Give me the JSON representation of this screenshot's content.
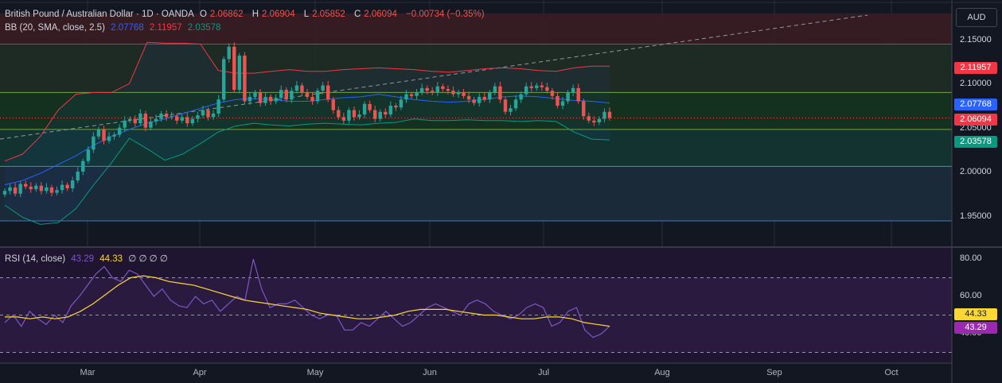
{
  "header": {
    "symbol": "British Pound / Australian Dollar · 1D · OANDA",
    "open_label": "O",
    "open": "2.06862",
    "high_label": "H",
    "high": "2.06904",
    "low_label": "L",
    "low": "2.05852",
    "close_label": "C",
    "close": "2.06094",
    "change": "−0.00734 (−0.35%)"
  },
  "bb_legend": {
    "label": "BB (20, SMA, close, 2.5)",
    "basis": "2.07768",
    "upper": "2.11957",
    "lower": "2.03578"
  },
  "rsi_legend": {
    "label": "RSI (14, close)",
    "rsi": "43.29",
    "ma": "44.33",
    "extra": "∅ ∅ ∅ ∅"
  },
  "currency_button": "AUD",
  "price_axis": [
    "2.15000",
    "2.10000",
    "2.05000",
    "2.00000",
    "1.95000"
  ],
  "rsi_axis": [
    "80.00",
    "60.00",
    "40.00"
  ],
  "badges": {
    "upper": "2.11957",
    "basis": "2.07768",
    "close": "2.06094",
    "lower": "2.03578",
    "rsi_ma": "44.33",
    "rsi": "43.29"
  },
  "x_axis": [
    "Mar",
    "Apr",
    "May",
    "Jun",
    "Jul",
    "Aug",
    "Sep",
    "Oct"
  ],
  "colors": {
    "up": "#26a69a",
    "down": "#ef5350",
    "basis": "#2962ff",
    "upper": "#f23645",
    "lower": "#089981",
    "rsi": "#7e57c2",
    "rsi_ma": "#fdd835",
    "background": "#131722"
  },
  "chart_data": [
    {
      "type": "candlestick",
      "title": "British Pound / Australian Dollar · 1D · OANDA",
      "xlabel": "",
      "ylabel": "AUD",
      "x_ticks": [
        "Mar",
        "Apr",
        "May",
        "Jun",
        "Jul",
        "Aug",
        "Sep",
        "Oct"
      ],
      "ylim": [
        1.925,
        2.17
      ],
      "y_ticks": [
        2.15,
        2.1,
        2.05,
        2.0,
        1.95
      ],
      "ohlc_close": [
        1.978,
        1.982,
        1.975,
        1.986,
        1.983,
        1.98,
        1.984,
        1.978,
        1.982,
        1.976,
        1.979,
        1.985,
        1.981,
        1.99,
        2.0,
        2.012,
        2.025,
        2.04,
        2.048,
        2.035,
        2.04,
        2.042,
        2.05,
        2.058,
        2.06,
        2.055,
        2.066,
        2.05,
        2.057,
        2.06,
        2.066,
        2.062,
        2.063,
        2.058,
        2.062,
        2.055,
        2.06,
        2.064,
        2.07,
        2.062,
        2.066,
        2.082,
        2.128,
        2.142,
        2.093,
        2.132,
        2.08,
        2.085,
        2.09,
        2.078,
        2.085,
        2.08,
        2.084,
        2.093,
        2.082,
        2.092,
        2.098,
        2.09,
        2.085,
        2.08,
        2.092,
        2.098,
        2.082,
        2.07,
        2.062,
        2.058,
        2.07,
        2.062,
        2.065,
        2.077,
        2.07,
        2.06,
        2.068,
        2.065,
        2.075,
        2.073,
        2.082,
        2.088,
        2.086,
        2.09,
        2.095,
        2.092,
        2.09,
        2.097,
        2.094,
        2.092,
        2.088,
        2.09,
        2.086,
        2.082,
        2.078,
        2.085,
        2.082,
        2.09,
        2.097,
        2.082,
        2.068,
        2.072,
        2.082,
        2.088,
        2.097,
        2.095,
        2.098,
        2.096,
        2.092,
        2.086,
        2.075,
        2.08,
        2.09,
        2.095,
        2.08,
        2.063,
        2.058,
        2.056,
        2.06,
        2.068,
        2.061
      ],
      "series": [
        {
          "name": "BB basis",
          "values": [
            1.985,
            1.99,
            1.998,
            2.008,
            2.018,
            2.03,
            2.04,
            2.048,
            2.055,
            2.06,
            2.066,
            2.072,
            2.078,
            2.082,
            2.083,
            2.082,
            2.08,
            2.08,
            2.082,
            2.084,
            2.085,
            2.088,
            2.085,
            2.082,
            2.08,
            2.079,
            2.08,
            2.082,
            2.085,
            2.086,
            2.085,
            2.083,
            2.081,
            2.08,
            2.078
          ]
        },
        {
          "name": "BB upper",
          "values": [
            2.012,
            2.02,
            2.04,
            2.07,
            2.088,
            2.09,
            2.09,
            2.1,
            2.147,
            2.146,
            2.146,
            2.145,
            2.115,
            2.112,
            2.112,
            2.114,
            2.116,
            2.114,
            2.114,
            2.116,
            2.117,
            2.118,
            2.117,
            2.116,
            2.114,
            2.113,
            2.115,
            2.117,
            2.118,
            2.117,
            2.115,
            2.114,
            2.118,
            2.12,
            2.12
          ]
        },
        {
          "name": "BB lower",
          "values": [
            1.962,
            1.948,
            1.94,
            1.942,
            1.958,
            1.985,
            2.01,
            2.038,
            2.026,
            2.013,
            2.02,
            2.032,
            2.045,
            2.052,
            2.055,
            2.053,
            2.052,
            2.054,
            2.055,
            2.054,
            2.053,
            2.055,
            2.056,
            2.06,
            2.058,
            2.058,
            2.059,
            2.058,
            2.058,
            2.057,
            2.058,
            2.057,
            2.045,
            2.037,
            2.036
          ]
        }
      ],
      "horizontal_levels": [
        2.145,
        2.09,
        2.048,
        2.006,
        1.944
      ]
    },
    {
      "type": "line",
      "title": "RSI (14, close)",
      "xlabel": "",
      "ylabel": "",
      "ylim": [
        30,
        82
      ],
      "y_ticks": [
        80,
        60,
        40
      ],
      "bands": [
        70,
        50,
        30
      ],
      "series": [
        {
          "name": "RSI",
          "values": [
            46,
            50,
            44,
            52,
            48,
            45,
            50,
            46,
            55,
            60,
            66,
            72,
            76,
            70,
            68,
            74,
            72,
            66,
            60,
            64,
            58,
            55,
            54,
            60,
            56,
            58,
            52,
            56,
            60,
            58,
            80,
            64,
            54,
            56,
            56,
            58,
            54,
            50,
            48,
            50,
            50,
            42,
            42,
            46,
            44,
            48,
            52,
            48,
            44,
            46,
            50,
            54,
            56,
            54,
            52,
            50,
            56,
            58,
            56,
            52,
            50,
            48,
            50,
            54,
            56,
            54,
            44,
            46,
            52,
            54,
            42,
            38,
            40,
            44
          ]
        },
        {
          "name": "RSI MA",
          "values": [
            49,
            49,
            48,
            49,
            48,
            49,
            52,
            56,
            61,
            66,
            70,
            71,
            70,
            68,
            67,
            66,
            64,
            62,
            60,
            58,
            57,
            56,
            55,
            54,
            53,
            51,
            50,
            49,
            48,
            48,
            49,
            50,
            52,
            53,
            53,
            53,
            52,
            51,
            50,
            50,
            49,
            48,
            48,
            49,
            49,
            48,
            46,
            45,
            44
          ]
        }
      ]
    }
  ]
}
